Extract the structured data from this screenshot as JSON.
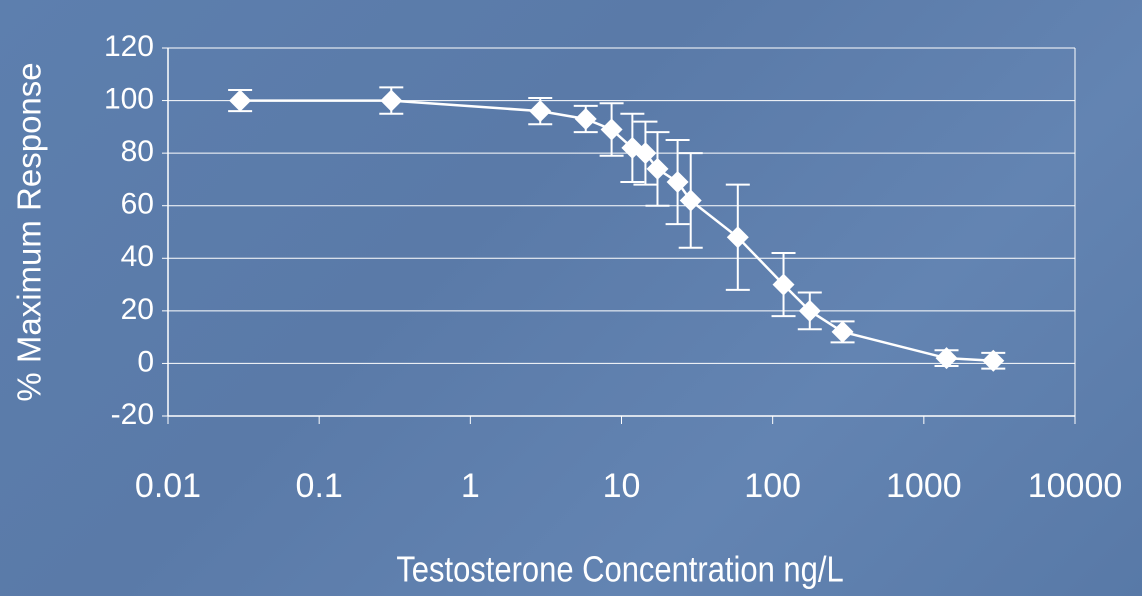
{
  "chart_data": {
    "type": "scatter",
    "x_label": "Testosterone Concentration ng/L",
    "y_label": "% Maximum Response",
    "xscale": "log",
    "xlim": [
      0.01,
      10000
    ],
    "xticks": [
      0.01,
      0.1,
      1,
      10,
      100,
      1000,
      10000
    ],
    "ylim": [
      -20,
      120
    ],
    "yticks": [
      -20,
      0,
      20,
      40,
      60,
      80,
      100,
      120
    ],
    "grid": true,
    "color": "#ffffff",
    "connect": true,
    "x": [
      0.03,
      0.3,
      2.9,
      5.8,
      8.6,
      11.8,
      14.4,
      17.3,
      23.5,
      28.7,
      58.8,
      118,
      176,
      290,
      1413,
      2880
    ],
    "values": [
      100,
      100,
      96,
      93,
      89,
      82,
      80,
      74,
      69,
      62,
      48,
      30,
      20,
      12,
      2,
      1
    ],
    "errors": [
      4,
      5,
      5,
      5,
      10,
      13,
      12,
      14,
      16,
      18,
      20,
      12,
      7,
      4,
      3,
      3
    ]
  }
}
